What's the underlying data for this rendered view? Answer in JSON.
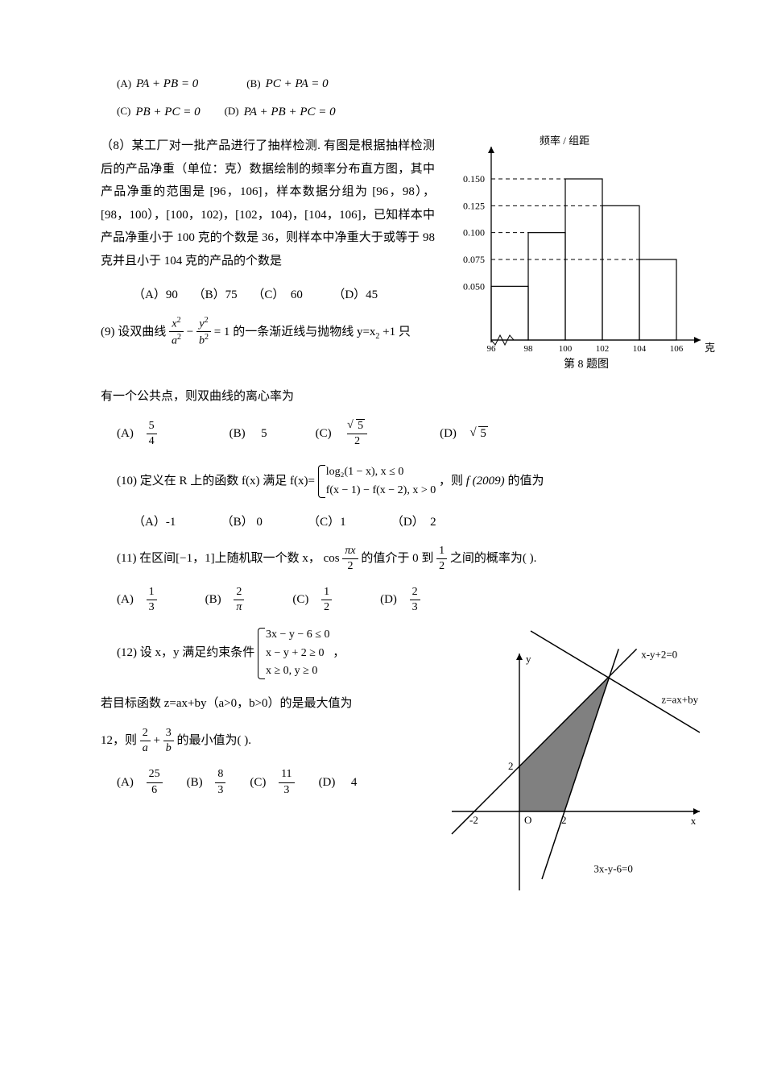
{
  "q7_options": {
    "A": {
      "label": "(A)",
      "expr": "PA + PB = 0"
    },
    "B": {
      "label": "(B)",
      "expr": "PC + PA = 0"
    },
    "C": {
      "label": "(C)",
      "expr": "PB + PC = 0"
    },
    "D": {
      "label": "(D)",
      "expr": "PA + PB + PC = 0"
    }
  },
  "q8": {
    "text_part1": "（8）某工厂对一批产品进行了抽样检测. 有图是根据抽样检测后的产品净重（单位：克）数据绘制的频率分布直方图，其中产品净重的范围是 [96，106]，样本数据分组为 [96，98），[98，100），[100，102)，[102，104)，[104，106]，已知样本中产品净重小于 100 克的个数是 36，则样本中净重大于或等于 98 克并且小于 104 克的产品的个数是",
    "opts_line": "（A）90     （B）75     （C）  60          （D）45",
    "histogram": {
      "axis_y_label": "频率 / 组距",
      "axis_x_label": "克",
      "caption": "第 8 题图",
      "x_ticks": [
        "96",
        "98",
        "100",
        "102",
        "104",
        "106"
      ],
      "y_ticks": [
        0.05,
        0.075,
        0.1,
        0.125,
        0.15
      ],
      "bars": [
        {
          "x": 96,
          "h": 0.05,
          "fill": "none"
        },
        {
          "x": 98,
          "h": 0.1,
          "fill": "none"
        },
        {
          "x": 100,
          "h": 0.15,
          "fill": "none"
        },
        {
          "x": 102,
          "h": 0.125,
          "fill": "none"
        },
        {
          "x": 104,
          "h": 0.075,
          "fill": "none"
        }
      ],
      "colors": {
        "axis": "#000000",
        "dash": "#000000"
      }
    }
  },
  "q9": {
    "lead": "(9)  设双曲线",
    "equation_tex": "x²/a² − y²/b² = 1",
    "mid": "的一条渐近线与抛物线 y=x",
    "sub2": "2",
    "mid2": " +1  只",
    "line2": "有一个公共点，则双曲线的离心率为",
    "opts": {
      "A": {
        "label": "(A)",
        "frac_num": "5",
        "frac_den": "4"
      },
      "B": {
        "label": "(B)",
        "val": "5"
      },
      "C": {
        "label": "(C)",
        "sqrt_num": "5",
        "frac_den": "2"
      },
      "D": {
        "label": "(D)",
        "sqrt": "5"
      }
    }
  },
  "q10": {
    "lead": "(10)  定义在 R 上的函数 f(x) 满足 f(x)= ",
    "case1": "log₂(1 − x), x ≤ 0",
    "case2": "f(x − 1) − f(x − 2), x > 0",
    "tail_prefix": "，则 ",
    "tail_fexpr": "f (2009)",
    "tail_suffix": " 的值为",
    "opts": "（A）-1               （B） 0               （C）1               （D）  2"
  },
  "q11": {
    "lead_prefix": "(11) 在区间[−1，1]上随机取一个数 x，",
    "cos_label": "cos",
    "cos_frac_num": "πx",
    "cos_frac_den": "2",
    "mid": " 的值介于 0 到 ",
    "half_num": "1",
    "half_den": "2",
    "tail": " 之间的概率为(          ).",
    "opts": {
      "A": {
        "label": "(A)",
        "num": "1",
        "den": "3"
      },
      "B": {
        "label": "(B)",
        "num": "2",
        "den": "π"
      },
      "C": {
        "label": "(C)",
        "num": "1",
        "den": "2"
      },
      "D": {
        "label": "(D)",
        "num": "2",
        "den": "3"
      }
    }
  },
  "q12": {
    "lead": "(12)  设 x，y 满足约束条件",
    "c1": "3x − y − 6 ≤ 0",
    "c2": "x − y + 2 ≥ 0",
    "c3": "x ≥ 0, y ≥ 0",
    "comma": " ，",
    "line2": "若目标函数 z=ax+by（a>0，b>0）的是最大值为",
    "line3_prefix": "12，则",
    "frac2_num": "2",
    "frac2_den": "a",
    "plus": " + ",
    "frac3_num": "3",
    "frac3_den": "b",
    "line3_suffix": " 的最小值为(                ).",
    "opts": {
      "A": {
        "label": "(A)",
        "num": "25",
        "den": "6"
      },
      "B": {
        "label": "(B)",
        "num": "8",
        "den": "3"
      },
      "C": {
        "label": "(C)",
        "num": "11",
        "den": "3"
      },
      "D": {
        "label": "(D)",
        "val": "4"
      }
    },
    "figure": {
      "labels": {
        "y": "y",
        "x": "x",
        "O": "O",
        "neg2": "-2",
        "two_x": "2",
        "two_y": "2",
        "line1": "x-y+2=0",
        "line2": "z=ax+by",
        "line3": "3x-y-6=0"
      },
      "colors": {
        "axis": "#000000",
        "line": "#000000",
        "fill": "#808080"
      },
      "feasible_region": [
        [
          0,
          0
        ],
        [
          2,
          0
        ],
        [
          4,
          6
        ],
        [
          0,
          2
        ]
      ]
    }
  }
}
